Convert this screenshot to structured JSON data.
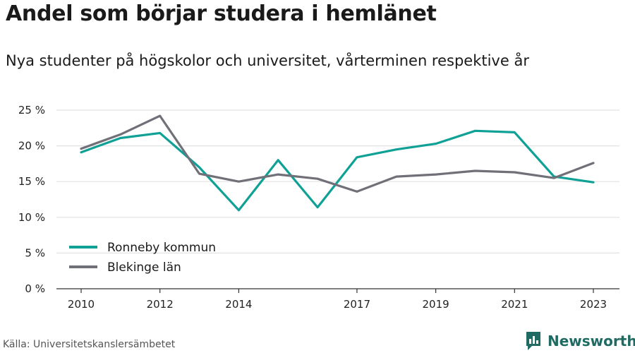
{
  "header": {
    "title": "Andel som börjar studera i hemlänet",
    "subtitle": "Nya studenter på högskolor och universitet, vårterminen respektive år"
  },
  "footer": {
    "source": "Källa: Universitetskanslersämbetet",
    "brand": "Newsworthy",
    "brand_icon": "newsworthy-logo-icon"
  },
  "colors": {
    "ronneby": "#0fa195",
    "blekinge": "#707078",
    "brand": "#1f6b63"
  },
  "chart_data": {
    "type": "line",
    "x": [
      2010,
      2011,
      2012,
      2013,
      2014,
      2015,
      2016,
      2017,
      2018,
      2019,
      2020,
      2021,
      2022,
      2023
    ],
    "x_ticks": [
      "2010",
      "2012",
      "2014",
      "2017",
      "2019",
      "2021",
      "2023"
    ],
    "y_ticks": [
      "0 %",
      "5 %",
      "10 %",
      "15 %",
      "20 %",
      "25 %"
    ],
    "ylim": [
      0,
      25
    ],
    "grid": true,
    "legend_position": "bottom-left",
    "series": [
      {
        "name": "Ronneby kommun",
        "values": [
          19.1,
          21.1,
          21.8,
          17.0,
          11.0,
          18.0,
          11.4,
          18.4,
          19.5,
          20.3,
          22.1,
          21.9,
          15.7,
          14.9
        ]
      },
      {
        "name": "Blekinge län",
        "values": [
          19.6,
          21.6,
          24.2,
          16.1,
          15.0,
          16.0,
          15.4,
          13.6,
          15.7,
          16.0,
          16.5,
          16.3,
          15.5,
          17.6
        ]
      }
    ]
  }
}
